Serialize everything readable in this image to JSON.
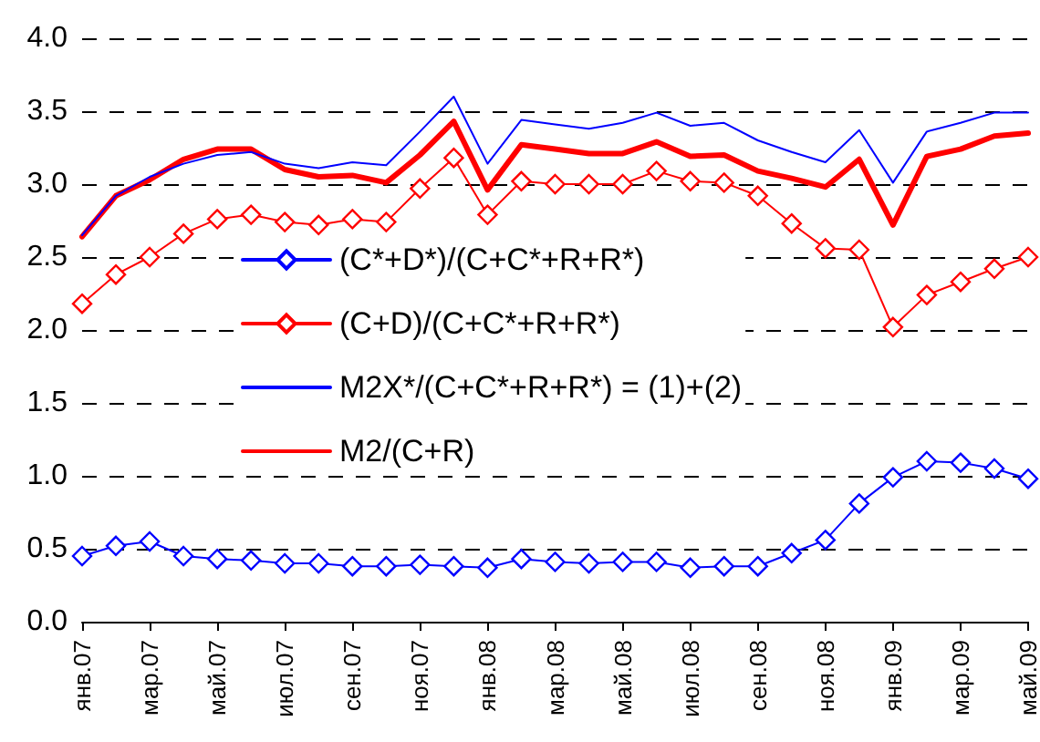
{
  "chart_data": {
    "type": "line",
    "categories": [
      "янв.07",
      null,
      "мар.07",
      null,
      "май.07",
      null,
      "июл.07",
      null,
      "сен.07",
      null,
      "ноя.07",
      null,
      "янв.08",
      null,
      "мар.08",
      null,
      "май.08",
      null,
      "июл.08",
      null,
      "сен.08",
      null,
      "ноя.08",
      null,
      "янв.09",
      null,
      "мар.09",
      null,
      "май.09"
    ],
    "series": [
      {
        "name": "(C*+D*)/(C+C*+R+R*)",
        "color": "#0000ff",
        "marker": "diamond",
        "values": [
          0.45,
          0.52,
          0.55,
          0.45,
          0.43,
          0.42,
          0.4,
          0.4,
          0.38,
          0.38,
          0.39,
          0.38,
          0.37,
          0.43,
          0.41,
          0.4,
          0.41,
          0.41,
          0.37,
          0.38,
          0.38,
          0.47,
          0.56,
          0.81,
          0.99,
          1.1,
          1.09,
          1.05,
          0.98
        ]
      },
      {
        "name": "(C+D)/(C+C*+R+R*)",
        "color": "#ff0000",
        "marker": "diamond",
        "values": [
          2.18,
          2.38,
          2.5,
          2.66,
          2.76,
          2.79,
          2.74,
          2.72,
          2.76,
          2.74,
          2.97,
          3.18,
          2.79,
          3.02,
          3.0,
          3.0,
          3.0,
          3.09,
          3.02,
          3.01,
          2.92,
          2.73,
          2.56,
          2.55,
          2.02,
          2.24,
          2.33,
          2.42,
          2.5
        ]
      },
      {
        "name": "M2X*/(C+C*+R+R*) = (1)+(2)",
        "color": "#0000ff",
        "marker": "none",
        "values": [
          2.65,
          2.92,
          3.05,
          3.14,
          3.2,
          3.22,
          3.14,
          3.11,
          3.15,
          3.13,
          3.36,
          3.6,
          3.14,
          3.44,
          3.41,
          3.38,
          3.42,
          3.49,
          3.4,
          3.42,
          3.3,
          3.22,
          3.15,
          3.37,
          3.01,
          3.36,
          3.42,
          3.49,
          3.49
        ]
      },
      {
        "name": "M2/(C+R)",
        "color": "#ff0000",
        "marker": "none",
        "values": [
          2.64,
          2.92,
          3.03,
          3.17,
          3.24,
          3.24,
          3.1,
          3.05,
          3.06,
          3.01,
          3.2,
          3.43,
          2.96,
          3.27,
          3.24,
          3.21,
          3.21,
          3.29,
          3.19,
          3.2,
          3.09,
          3.04,
          2.98,
          3.17,
          2.72,
          3.19,
          3.24,
          3.33,
          3.35
        ]
      }
    ],
    "ylim": [
      0,
      4
    ],
    "yticks": [
      {
        "value": 0,
        "label": "0.0"
      },
      {
        "value": 0.5,
        "label": "0.5"
      },
      {
        "value": 1,
        "label": "1.0"
      },
      {
        "value": 1.5,
        "label": "1.5"
      },
      {
        "value": 2,
        "label": "2.0"
      },
      {
        "value": 2.5,
        "label": "2.5"
      },
      {
        "value": 3,
        "label": "3.0"
      },
      {
        "value": 3.5,
        "label": "3.5"
      },
      {
        "value": 4,
        "label": "4.0"
      }
    ],
    "grid": "y",
    "legend": "center",
    "line_style": "solid"
  }
}
